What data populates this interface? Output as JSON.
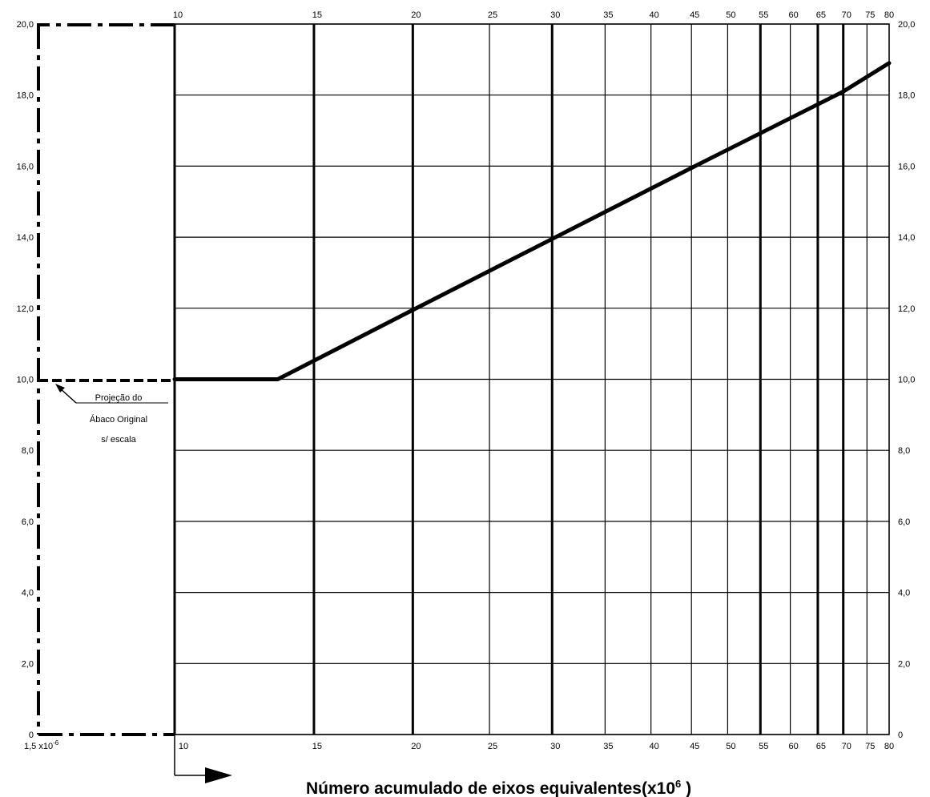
{
  "chart_data": {
    "type": "line",
    "title": "",
    "xlabel": "Número acumulado de eixos equivalentes(x10",
    "xlabel_sup": "6",
    "xlabel_close": " )",
    "x_scale": "log",
    "xlim": [
      10,
      80
    ],
    "ylim": [
      0,
      20
    ],
    "x_ticks": [
      10,
      15,
      20,
      25,
      30,
      35,
      40,
      45,
      50,
      55,
      60,
      65,
      70,
      75,
      80
    ],
    "x_tick_labels": [
      "10",
      "15",
      "20",
      "25",
      "30",
      "35",
      "40",
      "45",
      "50",
      "55",
      "60",
      "65",
      "70",
      "75",
      "80"
    ],
    "x_ticks_heavy": [
      10,
      15,
      20,
      30,
      55,
      65,
      70
    ],
    "y_ticks": [
      0,
      2,
      4,
      6,
      8,
      10,
      12,
      14,
      16,
      18,
      20
    ],
    "y_tick_labels": [
      "0",
      "2,0",
      "4,0",
      "6,0",
      "8,0",
      "10,0",
      "12,0",
      "14,0",
      "16,0",
      "18,0",
      "20,0"
    ],
    "x_origin_label": "1,5 x10",
    "x_origin_label_sup": "-6",
    "grid": true,
    "series": [
      {
        "x": [
          10,
          13.5,
          20,
          30,
          45,
          70,
          80
        ],
        "y": [
          10,
          10,
          11.95,
          13.95,
          15.95,
          18.1,
          18.9
        ]
      }
    ],
    "projection_line": {
      "y": 10
    },
    "annotation_lines": [
      "Projeção do",
      "Ábaco Original",
      "s/ escala"
    ],
    "colors": {
      "line": "#000000",
      "background": "#ffffff"
    }
  }
}
